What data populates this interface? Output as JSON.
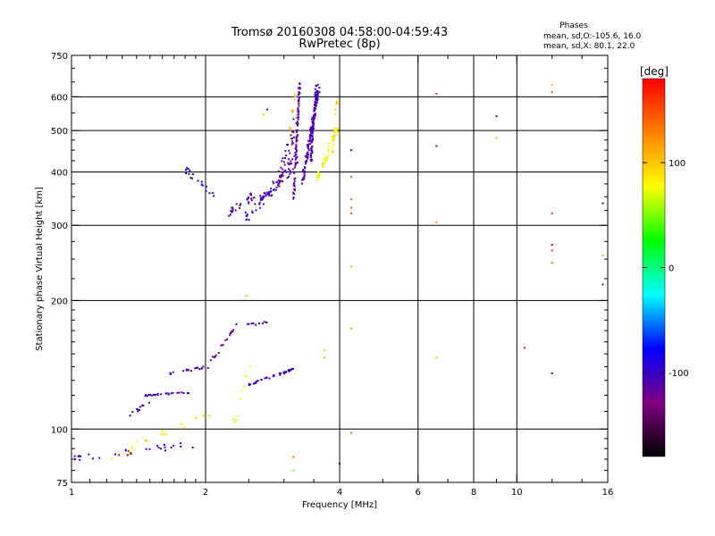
{
  "chart_data": {
    "type": "scatter",
    "title": "Tromsø 20160308 04:58:00-04:59:43",
    "subtitle": "RwPretec (8p)",
    "xlabel": "Frequency [MHz]",
    "ylabel": "Stationary phase Virtual Height [km]",
    "x_scale": "log",
    "y_scale": "log",
    "xlim": [
      1,
      16
    ],
    "ylim": [
      75,
      750
    ],
    "x_ticks": [
      1,
      2,
      4,
      6,
      8,
      10,
      16
    ],
    "x_tick_labels": [
      "1",
      "2",
      "4",
      "6",
      "8",
      "10",
      "16"
    ],
    "y_ticks": [
      75,
      100,
      200,
      300,
      400,
      500,
      600,
      750
    ],
    "y_tick_labels": [
      "75",
      "100",
      "200",
      "300",
      "400",
      "500",
      "600",
      "750"
    ],
    "x_minor_ticks": [
      1.1,
      1.2,
      1.3,
      1.4,
      1.5,
      1.6,
      1.7,
      1.8,
      1.9,
      2.5,
      3,
      3.5,
      5,
      7,
      9,
      12,
      14
    ],
    "y_minor_ticks": [
      80,
      85,
      90,
      95,
      110,
      120,
      130,
      140,
      150,
      160,
      170,
      180,
      190,
      225,
      250,
      275,
      325,
      350,
      375,
      425,
      450,
      475,
      550,
      650,
      700
    ],
    "grid": true,
    "x_grid": [
      2,
      4,
      6,
      8,
      10
    ],
    "y_grid": [
      100,
      200,
      300,
      400,
      500,
      600
    ],
    "phases_note": {
      "heading": "Phases",
      "line1": "mean, sd,O:-105.6, 16.0",
      "line2": "mean, sd,X:  80.1, 22.0"
    },
    "colorbar": {
      "label": "[deg]",
      "min": -180,
      "max": 180,
      "ticks": [
        100,
        0,
        -100
      ],
      "tick_labels": [
        "100",
        "0",
        "-100"
      ],
      "colormap": [
        "#000000",
        "#800080",
        "#0000ff",
        "#00ffff",
        "#00ff00",
        "#ffff00",
        "#ff8000",
        "#ff0000"
      ]
    },
    "series": [
      {
        "color_role": "o-mode",
        "segments": [
          {
            "f0": 2.25,
            "f1": 2.6,
            "h0": 320,
            "h1": 360,
            "n": 28,
            "phase": -110,
            "jit": 0.05
          },
          {
            "f0": 2.6,
            "f1": 3.2,
            "h0": 330,
            "h1": 430,
            "n": 40,
            "phase": -110,
            "jit": 0.06
          },
          {
            "f0": 2.45,
            "f1": 3.1,
            "h0": 310,
            "h1": 400,
            "n": 36,
            "phase": -100,
            "jit": 0.05
          },
          {
            "f0": 2.9,
            "f1": 3.25,
            "h0": 370,
            "h1": 560,
            "n": 40,
            "phase": -120,
            "jit": 0.06
          },
          {
            "f0": 3.15,
            "f1": 3.25,
            "h0": 340,
            "h1": 640,
            "n": 80,
            "phase": -115,
            "jit": 0.02
          },
          {
            "f0": 3.3,
            "f1": 3.6,
            "h0": 380,
            "h1": 640,
            "n": 120,
            "phase": -110,
            "jit": 0.03
          },
          {
            "f0": 3.45,
            "f1": 3.55,
            "h0": 420,
            "h1": 650,
            "n": 60,
            "phase": -100,
            "jit": 0.02
          },
          {
            "f0": 1.8,
            "f1": 2.1,
            "h0": 405,
            "h1": 355,
            "n": 18,
            "phase": -95,
            "jit": 0.04
          },
          {
            "f0": 1.45,
            "f1": 1.85,
            "h0": 120,
            "h1": 122,
            "n": 25,
            "phase": -105,
            "jit": 0.01
          },
          {
            "f0": 1.65,
            "f1": 2.05,
            "h0": 135,
            "h1": 140,
            "n": 20,
            "phase": -110,
            "jit": 0.015
          },
          {
            "f0": 2.5,
            "f1": 3.15,
            "h0": 127,
            "h1": 138,
            "n": 35,
            "phase": -105,
            "jit": 0.012
          },
          {
            "f0": 2.05,
            "f1": 2.35,
            "h0": 143,
            "h1": 176,
            "n": 20,
            "phase": -120,
            "jit": 0.02
          },
          {
            "f0": 1.35,
            "f1": 1.5,
            "h0": 108,
            "h1": 115,
            "n": 10,
            "phase": -100,
            "jit": 0.02
          },
          {
            "f0": 1.0,
            "f1": 1.9,
            "h0": 86,
            "h1": 92,
            "n": 30,
            "phase": -100,
            "jit": 0.04
          },
          {
            "f0": 2.45,
            "f1": 2.75,
            "h0": 175,
            "h1": 178,
            "n": 10,
            "phase": -110,
            "jit": 0.012
          }
        ]
      },
      {
        "color_role": "x-mode",
        "segments": [
          {
            "f0": 3.55,
            "f1": 3.95,
            "h0": 380,
            "h1": 500,
            "n": 45,
            "phase": 80,
            "jit": 0.04
          },
          {
            "f0": 3.85,
            "f1": 3.95,
            "h0": 430,
            "h1": 600,
            "n": 15,
            "phase": 95,
            "jit": 0.02
          },
          {
            "f0": 3.1,
            "f1": 3.2,
            "h0": 500,
            "h1": 640,
            "n": 8,
            "phase": 110,
            "jit": 0.02
          },
          {
            "f0": 1.2,
            "f1": 2.1,
            "h0": 85,
            "h1": 110,
            "n": 20,
            "phase": 90,
            "jit": 0.05
          },
          {
            "f0": 2.3,
            "f1": 2.5,
            "h0": 100,
            "h1": 140,
            "n": 10,
            "phase": 70,
            "jit": 0.04
          }
        ]
      },
      {
        "color_role": "isolated",
        "points": [
          {
            "f": 4.25,
            "h": 330,
            "p": 150
          },
          {
            "f": 4.25,
            "h": 320,
            "p": 150
          },
          {
            "f": 4.25,
            "h": 345,
            "p": 140
          },
          {
            "f": 4.25,
            "h": 240,
            "p": 115
          },
          {
            "f": 4.25,
            "h": 172,
            "p": 120
          },
          {
            "f": 4.25,
            "h": 98,
            "p": 140
          },
          {
            "f": 4.25,
            "h": 450,
            "p": -120
          },
          {
            "f": 4.25,
            "h": 390,
            "p": 150
          },
          {
            "f": 6.6,
            "h": 610,
            "p": 160
          },
          {
            "f": 6.6,
            "h": 460,
            "p": -120
          },
          {
            "f": 6.6,
            "h": 305,
            "p": 130
          },
          {
            "f": 6.6,
            "h": 147,
            "p": 110
          },
          {
            "f": 9.0,
            "h": 540,
            "p": -110
          },
          {
            "f": 9.0,
            "h": 480,
            "p": 110
          },
          {
            "f": 10.4,
            "h": 155,
            "p": 180
          },
          {
            "f": 12.0,
            "h": 640,
            "p": 110
          },
          {
            "f": 12.0,
            "h": 615,
            "p": 150
          },
          {
            "f": 12.0,
            "h": 320,
            "p": 160
          },
          {
            "f": 12.0,
            "h": 270,
            "p": -130
          },
          {
            "f": 12.0,
            "h": 262,
            "p": 160
          },
          {
            "f": 12.0,
            "h": 245,
            "p": 140
          },
          {
            "f": 12.0,
            "h": 135,
            "p": -110
          },
          {
            "f": 15.6,
            "h": 338,
            "p": -110
          },
          {
            "f": 15.6,
            "h": 255,
            "p": 110
          },
          {
            "f": 15.6,
            "h": 218,
            "p": -110
          },
          {
            "f": 2.7,
            "h": 545,
            "p": 50
          },
          {
            "f": 2.75,
            "h": 560,
            "p": -100
          },
          {
            "f": 2.47,
            "h": 205,
            "p": 40
          },
          {
            "f": 3.15,
            "h": 80,
            "p": 40
          },
          {
            "f": 3.15,
            "h": 86,
            "p": 140
          },
          {
            "f": 4.0,
            "h": 83,
            "p": -110
          },
          {
            "f": 3.7,
            "h": 147,
            "p": 110
          },
          {
            "f": 3.7,
            "h": 153,
            "p": 100
          }
        ]
      }
    ]
  }
}
